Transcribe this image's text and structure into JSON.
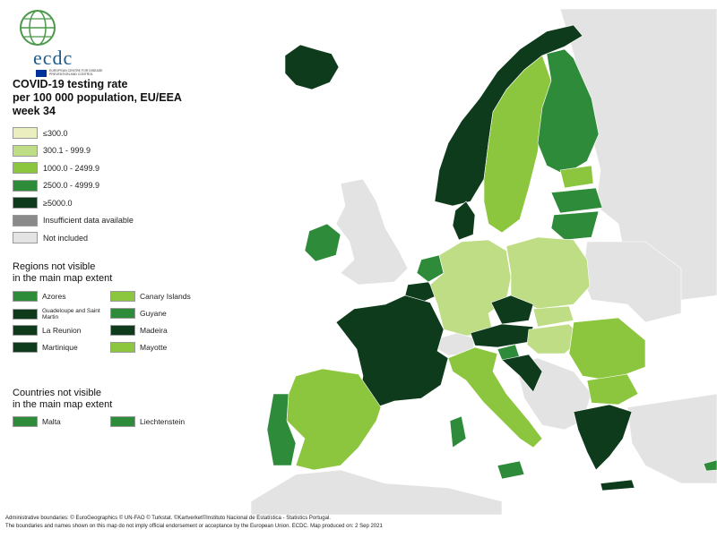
{
  "logo": {
    "text": "ecdc",
    "subtext": "EUROPEAN CENTRE FOR DISEASE PREVENTION AND CONTROL"
  },
  "title": {
    "line1": "COVID-19 testing rate",
    "line2": "per 100 000 population, EU/EEA",
    "line3": "week 34"
  },
  "colors": {
    "c1": "#ebefc0",
    "c2": "#bedd85",
    "c3": "#8cc63f",
    "c4": "#2e8b3a",
    "c5": "#0f3b1d",
    "insufficient": "#8a8a8a",
    "not_included": "#e3e3e3",
    "sea": "#ffffff"
  },
  "legend": [
    {
      "label": "≤300.0",
      "color_key": "c1"
    },
    {
      "label": "300.1 - 999.9",
      "color_key": "c2"
    },
    {
      "label": "1000.0 - 2499.9",
      "color_key": "c3"
    },
    {
      "label": "2500.0 - 4999.9",
      "color_key": "c4"
    },
    {
      "label": "≥5000.0",
      "color_key": "c5"
    },
    {
      "label": "Insufficient data available",
      "color_key": "insufficient"
    },
    {
      "label": "Not included",
      "color_key": "not_included"
    }
  ],
  "regions_section": {
    "title_line1": "Regions not visible",
    "title_line2": "in the main map extent",
    "items": [
      {
        "label": "Azores",
        "color_key": "c4"
      },
      {
        "label": "Canary Islands",
        "color_key": "c3"
      },
      {
        "label": "Guadeloupe and Saint Martin",
        "color_key": "c5"
      },
      {
        "label": "Guyane",
        "color_key": "c4"
      },
      {
        "label": "La Reunion",
        "color_key": "c5"
      },
      {
        "label": "Madeira",
        "color_key": "c5"
      },
      {
        "label": "Martinique",
        "color_key": "c5"
      },
      {
        "label": "Mayotte",
        "color_key": "c3"
      }
    ]
  },
  "countries_section": {
    "title_line1": "Countries not visible",
    "title_line2": "in the main map extent",
    "items": [
      {
        "label": "Malta",
        "color_key": "c4"
      },
      {
        "label": "Liechtenstein",
        "color_key": "c4"
      }
    ]
  },
  "map_regions": [
    {
      "name": "Iceland",
      "color_key": "c5"
    },
    {
      "name": "Norway",
      "color_key": "c5"
    },
    {
      "name": "Sweden",
      "color_key": "c3"
    },
    {
      "name": "Finland",
      "color_key": "c4"
    },
    {
      "name": "Estonia",
      "color_key": "c3"
    },
    {
      "name": "Latvia",
      "color_key": "c4"
    },
    {
      "name": "Lithuania",
      "color_key": "c4"
    },
    {
      "name": "Denmark",
      "color_key": "c5"
    },
    {
      "name": "Ireland",
      "color_key": "c4"
    },
    {
      "name": "Netherlands",
      "color_key": "c4"
    },
    {
      "name": "Belgium",
      "color_key": "c5"
    },
    {
      "name": "Germany",
      "color_key": "c2"
    },
    {
      "name": "Poland",
      "color_key": "c2"
    },
    {
      "name": "Czechia",
      "color_key": "c5"
    },
    {
      "name": "Slovakia",
      "color_key": "c2"
    },
    {
      "name": "Austria",
      "color_key": "c5"
    },
    {
      "name": "Hungary",
      "color_key": "c2"
    },
    {
      "name": "Romania",
      "color_key": "c3"
    },
    {
      "name": "Bulgaria",
      "color_key": "c3"
    },
    {
      "name": "France",
      "color_key": "c5"
    },
    {
      "name": "Spain",
      "color_key": "c3"
    },
    {
      "name": "Portugal",
      "color_key": "c4"
    },
    {
      "name": "Italy",
      "color_key": "c3"
    },
    {
      "name": "Slovenia",
      "color_key": "c4"
    },
    {
      "name": "Croatia",
      "color_key": "c5"
    },
    {
      "name": "Greece",
      "color_key": "c5"
    },
    {
      "name": "Cyprus",
      "color_key": "c4"
    },
    {
      "name": "Switzerland",
      "color_key": "not_included"
    },
    {
      "name": "United Kingdom",
      "color_key": "not_included"
    }
  ],
  "footer": {
    "line1": "Administrative boundaries: © EuroGeographics © UN-FAO © Turkstat. ©Kartverket©Instituto Nacional de Estatística - Statistics Portugal.",
    "line2": "The boundaries and names shown on this map do not imply official endorsement or acceptance by the European Union. ECDC. Map produced on: 2 Sep 2021"
  }
}
